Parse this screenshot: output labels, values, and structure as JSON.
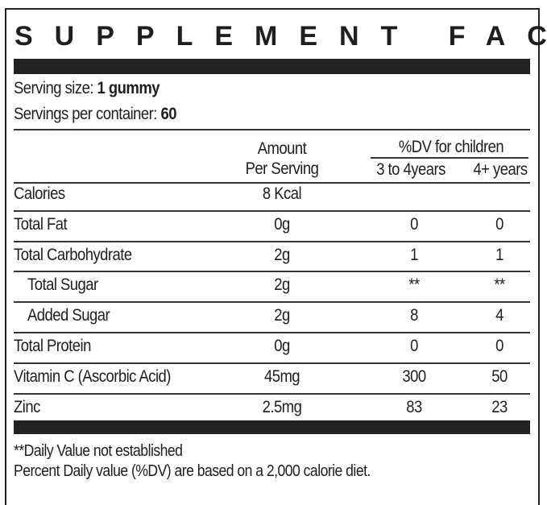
{
  "header": {
    "title": "SUPPLEMENT FACTS"
  },
  "serving": {
    "size_label": "Serving size:",
    "size_value": "1 gummy",
    "per_container_label": "Servings per container:",
    "per_container_value": "60"
  },
  "table": {
    "header": {
      "amount_line1": "Amount",
      "amount_line2": "Per Serving",
      "dv_group": "%DV for children",
      "dv_col1": "3 to 4years",
      "dv_col2": "4+ years"
    },
    "rows": [
      {
        "label": "Calories",
        "amount": "8 Kcal"
      },
      {
        "label": "Total Fat",
        "amount": "0g",
        "dv_col1": "0",
        "dv_col2": "0"
      },
      {
        "label": "Total Carbohydrate",
        "amount": "2g",
        "dv_col1": "1",
        "dv_col2": "1"
      },
      {
        "label": "Total Sugar",
        "amount": "2g",
        "dv_col1": "**",
        "dv_col2": "**",
        "indent": true
      },
      {
        "label": "Added Sugar",
        "amount": "2g",
        "dv_col1": "8",
        "dv_col2": "4",
        "indent": true
      },
      {
        "label": "Total Protein",
        "amount": "0g",
        "dv_col1": "0",
        "dv_col2": "0"
      },
      {
        "label": "Vitamin C (Ascorbic Acid)",
        "amount": "45mg",
        "dv_col1": "300",
        "dv_col2": "50"
      },
      {
        "label": "Zinc",
        "amount": "2.5mg",
        "dv_col1": "83",
        "dv_col2": "23"
      }
    ]
  },
  "footnotes": [
    "**Daily Value not established",
    "Percent Daily value (%DV) are based on a 2,000 calorie diet."
  ]
}
